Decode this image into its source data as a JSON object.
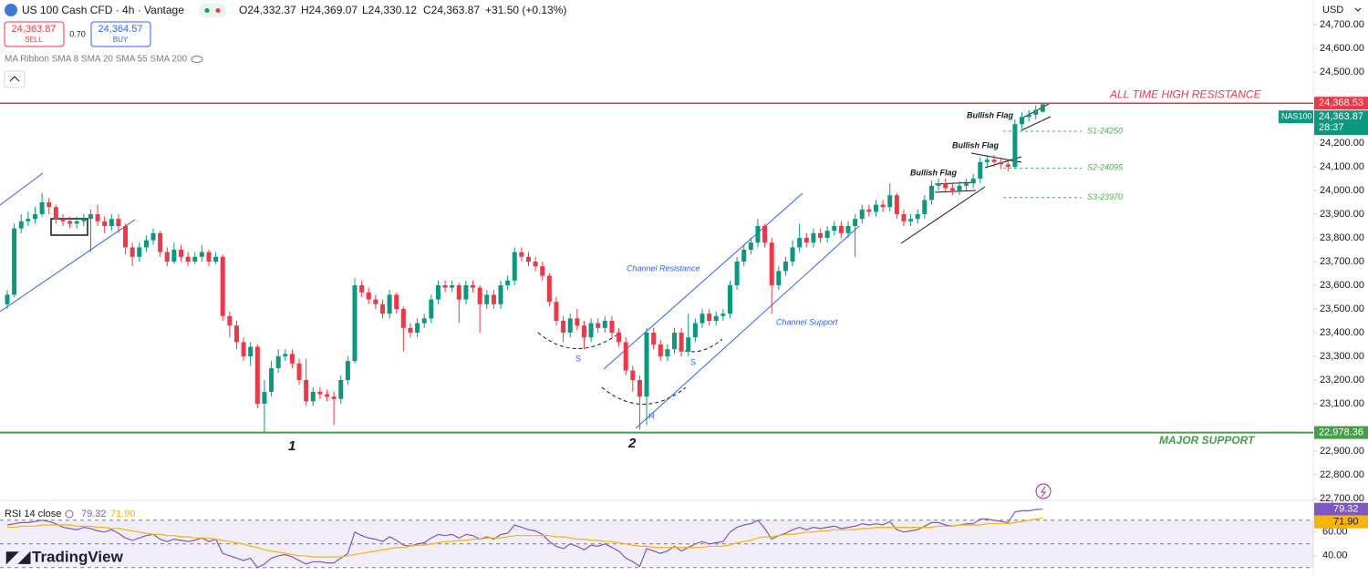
{
  "header": {
    "symbol": "US 100 Cash CFD · 4h · Vantage",
    "ohlc": [
      "O24,332.37",
      "H24,369.07",
      "L24,330.12",
      "C24,363.87"
    ],
    "change": "+31.50 (+0.13%)",
    "sell_price": "24,363.87",
    "sell": "SELL",
    "spread": "0.70",
    "buy_price": "24,364.57",
    "buy": "BUY",
    "indicator": "MA Ribbon SMA 8 SMA 20 SMA 55 SMA 200",
    "currency": "USD"
  },
  "brand": "TradingView",
  "annotations": {
    "bullish_flag": [
      "Bullish Flag",
      "Bullish Flag",
      "Bullish Flag"
    ],
    "channel_resistance": "Channel Resistance",
    "channel_support": "Channel Support",
    "swing_lows": [
      "1",
      "2"
    ],
    "pattern": [
      "S",
      "S",
      "H"
    ]
  },
  "chart_data": [
    {
      "type": "candlestick",
      "open": [
        23520,
        23560,
        23840,
        23870,
        23880,
        23900,
        23950,
        23930,
        23880,
        23870,
        23860,
        23870,
        23880,
        23900,
        23870,
        23850,
        23880,
        23850,
        23760,
        23720,
        23760,
        23790,
        23820,
        23740,
        23700,
        23750,
        23720,
        23700,
        23720,
        23740,
        23700,
        23720,
        23470,
        23430,
        23360,
        23300,
        23340,
        23100,
        23150,
        23250,
        23300,
        23310,
        23270,
        23200,
        23110,
        23150,
        23140,
        23130,
        23120,
        23200,
        23280,
        23600,
        23570,
        23540,
        23520,
        23480,
        23560,
        23500,
        23420,
        23400,
        23440,
        23460,
        23540,
        23600,
        23590,
        23600,
        23540,
        23600,
        23590,
        23520,
        23560,
        23520,
        23600,
        23620,
        23740,
        23720,
        23700,
        23680,
        23640,
        23530,
        23450,
        23400,
        23460,
        23430,
        23380,
        23440,
        23420,
        23450,
        23400,
        23360,
        23240,
        23200,
        23130,
        23400,
        23350,
        23300,
        23330,
        23400,
        23320,
        23380,
        23440,
        23480,
        23450,
        23470,
        23480,
        23600,
        23700,
        23750,
        23780,
        23850,
        23780,
        23600,
        23660,
        23700,
        23760,
        23800,
        23780,
        23820,
        23800,
        23830,
        23850,
        23820,
        23850,
        23880,
        23920,
        23910,
        23940,
        23930,
        23980,
        23900,
        23870,
        23880,
        23900,
        23960,
        24020,
        24030,
        24010,
        24000,
        24020,
        24030,
        24050,
        24120,
        24130,
        24120,
        24110,
        24100,
        24280,
        24310,
        24320,
        24332.37
      ],
      "high": [
        23580,
        23860,
        23900,
        23910,
        23930,
        23990,
        23970,
        23940,
        23900,
        23890,
        23890,
        23900,
        23920,
        23940,
        23890,
        23900,
        23900,
        23860,
        23780,
        23780,
        23810,
        23840,
        23830,
        23760,
        23780,
        23770,
        23740,
        23740,
        23770,
        23750,
        23740,
        23730,
        23490,
        23450,
        23380,
        23360,
        23350,
        23200,
        23280,
        23330,
        23330,
        23330,
        23290,
        23290,
        23170,
        23170,
        23160,
        23150,
        23220,
        23300,
        23630,
        23620,
        23590,
        23560,
        23540,
        23580,
        23570,
        23510,
        23440,
        23460,
        23480,
        23560,
        23620,
        23620,
        23620,
        23610,
        23620,
        23620,
        23600,
        23580,
        23580,
        23620,
        23640,
        23760,
        23760,
        23740,
        23720,
        23700,
        23650,
        23550,
        23470,
        23480,
        23500,
        23450,
        23460,
        23460,
        23470,
        23470,
        23420,
        23380,
        23260,
        23220,
        23420,
        23420,
        23370,
        23350,
        23420,
        23420,
        23480,
        23460,
        23500,
        23500,
        23490,
        23500,
        23620,
        23720,
        23770,
        23800,
        23880,
        23860,
        23800,
        23680,
        23720,
        23790,
        23860,
        23820,
        23840,
        23840,
        23850,
        23870,
        23870,
        23870,
        23900,
        23940,
        23940,
        23960,
        23960,
        24030,
        23990,
        23920,
        23900,
        23920,
        23980,
        24040,
        24050,
        24050,
        24030,
        24040,
        24050,
        24070,
        24140,
        24150,
        24150,
        24140,
        24130,
        24300,
        24330,
        24340,
        24360,
        24369.07
      ],
      "low": [
        23500,
        23550,
        23820,
        23850,
        23860,
        23890,
        23900,
        23860,
        23850,
        23840,
        23840,
        23850,
        23740,
        23850,
        23820,
        23830,
        23820,
        23730,
        23680,
        23700,
        23740,
        23770,
        23720,
        23680,
        23690,
        23700,
        23680,
        23690,
        23700,
        23680,
        23690,
        23450,
        23380,
        23330,
        23280,
        23260,
        23080,
        22980,
        23130,
        23230,
        23280,
        23250,
        23180,
        23090,
        23090,
        23120,
        23110,
        23010,
        23100,
        23180,
        23270,
        23550,
        23520,
        23500,
        23460,
        23460,
        23480,
        23320,
        23380,
        23380,
        23420,
        23440,
        23520,
        23570,
        23570,
        23440,
        23520,
        23570,
        23400,
        23500,
        23500,
        23500,
        23580,
        23600,
        23700,
        23680,
        23660,
        23620,
        23510,
        23430,
        23360,
        23380,
        23410,
        23330,
        23360,
        23400,
        23400,
        23380,
        23340,
        23220,
        23150,
        22990,
        23010,
        23330,
        23280,
        23280,
        23310,
        23300,
        23300,
        23360,
        23420,
        23430,
        23430,
        23450,
        23460,
        23580,
        23680,
        23730,
        23760,
        23760,
        23480,
        23580,
        23640,
        23680,
        23740,
        23760,
        23760,
        23780,
        23780,
        23810,
        23800,
        23800,
        23720,
        23860,
        23890,
        23890,
        23910,
        23910,
        23880,
        23850,
        23850,
        23860,
        23880,
        23940,
        24000,
        23990,
        23980,
        23980,
        24000,
        24010,
        24030,
        24100,
        24100,
        24090,
        24080,
        24090,
        24260,
        24290,
        24300,
        24330.12
      ],
      "close": [
        23560,
        23840,
        23870,
        23880,
        23900,
        23950,
        23930,
        23880,
        23870,
        23860,
        23870,
        23880,
        23900,
        23870,
        23850,
        23880,
        23850,
        23760,
        23720,
        23760,
        23790,
        23820,
        23740,
        23700,
        23750,
        23720,
        23700,
        23720,
        23740,
        23700,
        23720,
        23470,
        23430,
        23360,
        23300,
        23340,
        23100,
        23150,
        23250,
        23300,
        23310,
        23270,
        23200,
        23110,
        23150,
        23140,
        23130,
        23120,
        23200,
        23280,
        23600,
        23570,
        23540,
        23520,
        23480,
        23560,
        23500,
        23420,
        23400,
        23440,
        23460,
        23540,
        23600,
        23590,
        23600,
        23540,
        23600,
        23590,
        23520,
        23560,
        23520,
        23600,
        23620,
        23740,
        23720,
        23700,
        23680,
        23640,
        23530,
        23450,
        23400,
        23460,
        23430,
        23380,
        23440,
        23420,
        23450,
        23400,
        23360,
        23240,
        23200,
        23130,
        23400,
        23350,
        23300,
        23330,
        23400,
        23320,
        23380,
        23440,
        23480,
        23450,
        23470,
        23480,
        23600,
        23700,
        23750,
        23780,
        23850,
        23780,
        23600,
        23660,
        23700,
        23760,
        23800,
        23780,
        23820,
        23800,
        23830,
        23850,
        23820,
        23850,
        23880,
        23920,
        23910,
        23940,
        23930,
        23980,
        23900,
        23870,
        23880,
        23900,
        23960,
        24020,
        24030,
        24010,
        24000,
        24020,
        24030,
        24050,
        24120,
        24130,
        24120,
        24110,
        24100,
        24280,
        24310,
        24320,
        24340,
        24363.87
      ],
      "up_color": "#089981",
      "down_color": "#f23645",
      "ylim": [
        22696,
        24804
      ],
      "yticks": [
        {
          "value": 24700,
          "label": "24,700.00"
        },
        {
          "value": 24600,
          "label": "24,600.00"
        },
        {
          "value": 24500,
          "label": "24,500.00"
        },
        {
          "value": 24200,
          "label": "24,200.00"
        },
        {
          "value": 24100,
          "label": "24,100.00"
        },
        {
          "value": 24000,
          "label": "24,000.00"
        },
        {
          "value": 23900,
          "label": "23,900.00"
        },
        {
          "value": 23800,
          "label": "23,800.00"
        },
        {
          "value": 23700,
          "label": "23,700.00"
        },
        {
          "value": 23600,
          "label": "23,600.00"
        },
        {
          "value": 23500,
          "label": "23,500.00"
        },
        {
          "value": 23400,
          "label": "23,400.00"
        },
        {
          "value": 23300,
          "label": "23,300.00"
        },
        {
          "value": 23200,
          "label": "23,200.00"
        },
        {
          "value": 23100,
          "label": "23,100.00"
        },
        {
          "value": 22900,
          "label": "22,900.00"
        },
        {
          "value": 22800,
          "label": "22,800.00"
        },
        {
          "value": 22700,
          "label": "22,700.00"
        }
      ],
      "grid": false,
      "resistance": {
        "value": 24368.53,
        "label": "24,368.53",
        "text": "ALL TIME HIGH RESISTANCE",
        "color": "#f23645"
      },
      "support": {
        "value": 22978.36,
        "label": "22,978.36",
        "text": "MAJOR SUPPORT",
        "color": "#43a047"
      },
      "last_price": {
        "value": 24363.87,
        "label": "24,363.87",
        "symbol": "NAS100",
        "countdown": "28:37",
        "color": "#089981"
      },
      "levels": [
        {
          "value": 24250,
          "label": "S1-24250"
        },
        {
          "value": 24095,
          "label": "S2-24095"
        },
        {
          "value": 23970,
          "label": "S3-23970"
        }
      ],
      "level_color": "#4caf50"
    },
    {
      "type": "line",
      "title": "RSI 14 close",
      "series": [
        {
          "color": "#7e57c2",
          "last_label": "79.32",
          "values": [
            66,
            67,
            68,
            68,
            69,
            70,
            69,
            67,
            64,
            63,
            62,
            64,
            63,
            61,
            60,
            62,
            59,
            55,
            53,
            55,
            57,
            58,
            54,
            52,
            54,
            53,
            52,
            53,
            55,
            52,
            54,
            42,
            40,
            38,
            36,
            38,
            30,
            33,
            38,
            40,
            41,
            39,
            36,
            33,
            35,
            35,
            34,
            34,
            38,
            42,
            60,
            57,
            55,
            54,
            52,
            56,
            53,
            49,
            48,
            50,
            51,
            55,
            58,
            57,
            58,
            55,
            58,
            57,
            54,
            56,
            54,
            58,
            59,
            66,
            64,
            62,
            61,
            58,
            52,
            48,
            46,
            50,
            48,
            45,
            49,
            48,
            50,
            47,
            44,
            38,
            35,
            31,
            46,
            44,
            42,
            44,
            48,
            44,
            47,
            50,
            52,
            50,
            51,
            52,
            60,
            64,
            66,
            67,
            70,
            63,
            54,
            57,
            59,
            62,
            64,
            62,
            64,
            63,
            64,
            65,
            63,
            64,
            65,
            67,
            66,
            67,
            66,
            69,
            62,
            60,
            61,
            62,
            65,
            68,
            68,
            66,
            65,
            66,
            67,
            67,
            71,
            71,
            70,
            69,
            68,
            77,
            78,
            78,
            79,
            79.32
          ]
        },
        {
          "color": "#f7b500",
          "last_label": "71.90",
          "values": [
            64,
            64,
            65,
            65,
            65,
            66,
            66,
            66,
            66,
            66,
            65,
            65,
            65,
            64,
            64,
            63,
            63,
            62,
            61,
            60,
            59,
            58,
            58,
            57,
            57,
            56,
            56,
            55,
            55,
            55,
            54,
            53,
            52,
            51,
            50,
            48,
            47,
            45,
            44,
            43,
            42,
            41,
            40,
            40,
            39,
            39,
            39,
            39,
            39,
            40,
            41,
            42,
            43,
            44,
            45,
            46,
            47,
            47,
            48,
            49,
            49,
            50,
            51,
            52,
            52,
            53,
            53,
            54,
            54,
            55,
            55,
            55,
            56,
            57,
            57,
            57,
            57,
            57,
            57,
            56,
            56,
            55,
            54,
            54,
            53,
            53,
            52,
            52,
            51,
            50,
            49,
            48,
            48,
            47,
            47,
            47,
            47,
            47,
            47,
            47,
            47,
            48,
            48,
            48,
            49,
            51,
            52,
            53,
            55,
            56,
            56,
            57,
            58,
            58,
            59,
            60,
            60,
            61,
            61,
            62,
            62,
            62,
            62,
            63,
            63,
            64,
            64,
            64,
            64,
            64,
            64,
            64,
            64,
            64,
            65,
            65,
            65,
            66,
            66,
            66,
            66,
            67,
            67,
            67,
            67,
            68,
            69,
            70,
            71,
            71.9
          ]
        }
      ],
      "ylim": [
        26,
        86
      ],
      "yticks": [
        {
          "value": 60,
          "label": "60.00"
        },
        {
          "value": 40,
          "label": "40.00"
        }
      ],
      "hlines": [
        70,
        50,
        30
      ],
      "band": [
        30,
        70
      ]
    }
  ]
}
